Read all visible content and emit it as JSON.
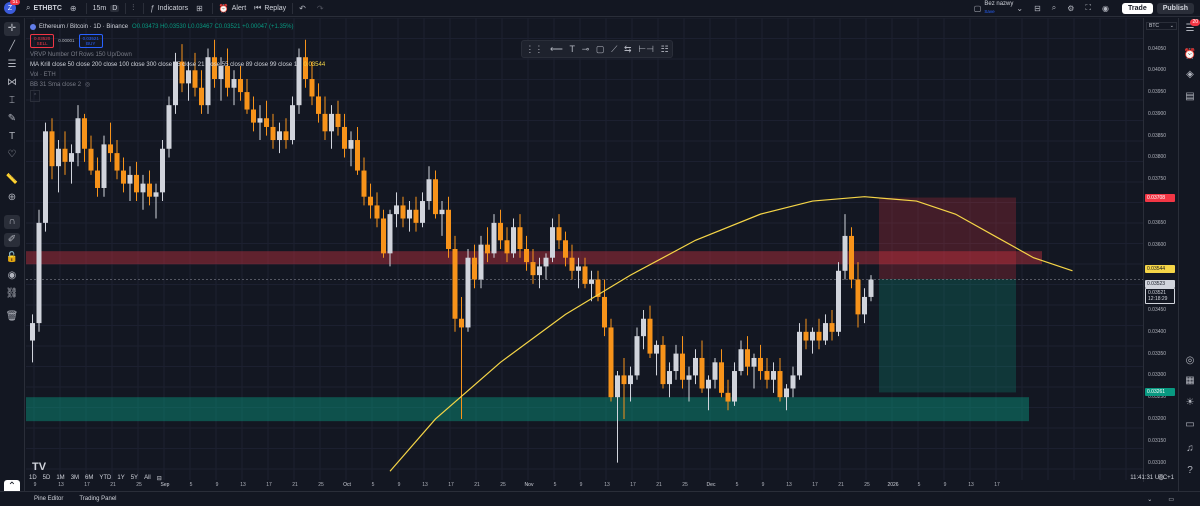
{
  "header": {
    "avatar_letter": "Z",
    "avatar_badge": "51",
    "symbol": "ETHBTC",
    "interval": "15m",
    "interval_badge": "D",
    "indicators_label": "Indicators",
    "alert_label": "Alert",
    "replay_label": "Replay",
    "layout_name": "Bez nazwy",
    "layout_sub": "Save",
    "trade_label": "Trade",
    "publish_label": "Publish"
  },
  "legend": {
    "title": "Ethereum / Bitcoin · 1D · Binance",
    "ohlc": "O0.03473 H0.03530 L0.03467 C0.03521 +0.00047 (+1.35%)",
    "sell_price": "0.03520",
    "sell_label": "SELL",
    "spread": "0.00001",
    "buy_price": "0.03521",
    "buy_label": "BUY",
    "ind1": "VRVP Number Of Rows 150 Up/Down",
    "ind2": "MA Krill close 50 close 200 close 100 close 300 close 15 close 21 close 55 close 89 close 99 close 10",
    "ind2_value": "0.03544",
    "ind3": "Vol · ETH",
    "ind4": "BB 31 Sma close 2"
  },
  "price_scale": {
    "currency": "BTC",
    "labels": [
      "0.04050",
      "0.04000",
      "0.03950",
      "0.03900",
      "0.03850",
      "0.03800",
      "0.03750",
      "0.03650",
      "0.03600",
      "0.03450",
      "0.03400",
      "0.03350",
      "0.03300",
      "0.03250",
      "0.03200",
      "0.03150",
      "0.03100"
    ],
    "tag_stop": "0.03708",
    "tag_ma": "0.03544",
    "tag_prev": "0.03523",
    "tag_last": "0.03521",
    "tag_countdown": "12:18:29",
    "tag_target": "0.03261"
  },
  "time_scale": {
    "labels": [
      "9",
      "13",
      "17",
      "21",
      "25",
      "Sep",
      "5",
      "9",
      "13",
      "17",
      "21",
      "25",
      "Oct",
      "5",
      "9",
      "13",
      "17",
      "21",
      "25",
      "Nov",
      "5",
      "9",
      "13",
      "17",
      "21",
      "25",
      "Dec",
      "5",
      "9",
      "13",
      "17",
      "21",
      "25",
      "2026",
      "5",
      "9",
      "13",
      "17"
    ]
  },
  "bottom": {
    "ranges": [
      "1D",
      "5D",
      "1M",
      "3M",
      "6M",
      "YTD",
      "1Y",
      "5Y",
      "All"
    ],
    "clock": "11:41:31 UTC+1"
  },
  "footer": {
    "pine_editor": "Pine Editor",
    "trading_panel": "Trading Panel"
  },
  "colors": {
    "background": "#131722",
    "up": "#d1d4dc",
    "down": "#f7931a",
    "ma": "#f5d547",
    "resistance_zone": "#f23645",
    "support_zone": "#089981"
  },
  "chart_data": {
    "type": "candlestick",
    "symbol": "ETHBTC",
    "timeframe": "1D",
    "ylim": [
      0.0306,
      0.0412
    ],
    "resistance_zone": [
      0.03555,
      0.03585
    ],
    "support_zone": [
      0.03195,
      0.0325
    ],
    "position": {
      "entry": 0.03521,
      "stop": 0.03708,
      "target": 0.03261
    },
    "candles": [
      [
        0.0338,
        0.0344,
        0.0333,
        0.0342
      ],
      [
        0.0342,
        0.0368,
        0.034,
        0.0365
      ],
      [
        0.0365,
        0.0388,
        0.0363,
        0.0386
      ],
      [
        0.0386,
        0.0389,
        0.0375,
        0.0378
      ],
      [
        0.0378,
        0.0384,
        0.0372,
        0.0382
      ],
      [
        0.0382,
        0.0386,
        0.0376,
        0.0379
      ],
      [
        0.0379,
        0.0383,
        0.0374,
        0.0381
      ],
      [
        0.0381,
        0.0392,
        0.0378,
        0.0389
      ],
      [
        0.0389,
        0.039,
        0.0379,
        0.0382
      ],
      [
        0.0382,
        0.0385,
        0.0376,
        0.0377
      ],
      [
        0.0377,
        0.038,
        0.0371,
        0.0373
      ],
      [
        0.0373,
        0.0385,
        0.0371,
        0.0383
      ],
      [
        0.0383,
        0.0388,
        0.0379,
        0.0381
      ],
      [
        0.0381,
        0.0384,
        0.0375,
        0.0377
      ],
      [
        0.0377,
        0.038,
        0.0372,
        0.0374
      ],
      [
        0.0374,
        0.0378,
        0.037,
        0.0376
      ],
      [
        0.0376,
        0.0379,
        0.037,
        0.0372
      ],
      [
        0.0372,
        0.0376,
        0.0368,
        0.0374
      ],
      [
        0.0374,
        0.0377,
        0.0369,
        0.0371
      ],
      [
        0.0371,
        0.0374,
        0.0366,
        0.0372
      ],
      [
        0.0372,
        0.0384,
        0.037,
        0.0382
      ],
      [
        0.0382,
        0.0394,
        0.038,
        0.0392
      ],
      [
        0.0392,
        0.0404,
        0.039,
        0.0402
      ],
      [
        0.0402,
        0.0406,
        0.0395,
        0.0397
      ],
      [
        0.0397,
        0.0402,
        0.0393,
        0.04
      ],
      [
        0.04,
        0.0404,
        0.0394,
        0.0396
      ],
      [
        0.0396,
        0.04,
        0.039,
        0.0392
      ],
      [
        0.0392,
        0.0405,
        0.039,
        0.0403
      ],
      [
        0.0403,
        0.0407,
        0.0396,
        0.0398
      ],
      [
        0.0398,
        0.0403,
        0.0393,
        0.0401
      ],
      [
        0.0401,
        0.0405,
        0.0394,
        0.0396
      ],
      [
        0.0396,
        0.04,
        0.0392,
        0.0398
      ],
      [
        0.0398,
        0.0401,
        0.0393,
        0.0395
      ],
      [
        0.0395,
        0.0398,
        0.039,
        0.0391
      ],
      [
        0.0391,
        0.0394,
        0.0386,
        0.0388
      ],
      [
        0.0388,
        0.0392,
        0.0384,
        0.0389
      ],
      [
        0.0389,
        0.0393,
        0.0385,
        0.0387
      ],
      [
        0.0387,
        0.039,
        0.0382,
        0.0384
      ],
      [
        0.0384,
        0.0388,
        0.0381,
        0.0386
      ],
      [
        0.0386,
        0.0389,
        0.0382,
        0.0384
      ],
      [
        0.0384,
        0.0394,
        0.0383,
        0.0392
      ],
      [
        0.0392,
        0.0405,
        0.039,
        0.0403
      ],
      [
        0.0403,
        0.0407,
        0.0396,
        0.0398
      ],
      [
        0.0398,
        0.0402,
        0.0392,
        0.0394
      ],
      [
        0.0394,
        0.0397,
        0.0388,
        0.039
      ],
      [
        0.039,
        0.0394,
        0.0384,
        0.0386
      ],
      [
        0.0386,
        0.0392,
        0.0382,
        0.039
      ],
      [
        0.039,
        0.0393,
        0.0385,
        0.0387
      ],
      [
        0.0387,
        0.039,
        0.038,
        0.0382
      ],
      [
        0.0382,
        0.0386,
        0.0378,
        0.0384
      ],
      [
        0.0384,
        0.0387,
        0.0376,
        0.0377
      ],
      [
        0.0377,
        0.038,
        0.0369,
        0.0371
      ],
      [
        0.0371,
        0.0374,
        0.0366,
        0.0369
      ],
      [
        0.0369,
        0.0372,
        0.0364,
        0.0366
      ],
      [
        0.0366,
        0.0368,
        0.0357,
        0.0358
      ],
      [
        0.0358,
        0.0368,
        0.0355,
        0.0367
      ],
      [
        0.0367,
        0.0372,
        0.0364,
        0.0369
      ],
      [
        0.0369,
        0.0371,
        0.0364,
        0.0366
      ],
      [
        0.0366,
        0.037,
        0.0363,
        0.0368
      ],
      [
        0.0368,
        0.0371,
        0.0363,
        0.0365
      ],
      [
        0.0365,
        0.0372,
        0.0364,
        0.037
      ],
      [
        0.037,
        0.0378,
        0.0368,
        0.0375
      ],
      [
        0.0375,
        0.0377,
        0.0366,
        0.0367
      ],
      [
        0.0367,
        0.037,
        0.0362,
        0.0368
      ],
      [
        0.0368,
        0.0371,
        0.0357,
        0.0359
      ],
      [
        0.0359,
        0.0362,
        0.034,
        0.0343
      ],
      [
        0.0343,
        0.0348,
        0.032,
        0.0341
      ],
      [
        0.0341,
        0.0359,
        0.034,
        0.0357
      ],
      [
        0.0357,
        0.036,
        0.035,
        0.0352
      ],
      [
        0.0352,
        0.0362,
        0.035,
        0.036
      ],
      [
        0.036,
        0.0364,
        0.0356,
        0.0358
      ],
      [
        0.0358,
        0.0367,
        0.0357,
        0.0365
      ],
      [
        0.0365,
        0.0368,
        0.0359,
        0.0361
      ],
      [
        0.0361,
        0.0364,
        0.0356,
        0.0358
      ],
      [
        0.0358,
        0.0366,
        0.0357,
        0.0364
      ],
      [
        0.0364,
        0.0367,
        0.0357,
        0.0359
      ],
      [
        0.0359,
        0.0362,
        0.0354,
        0.0356
      ],
      [
        0.0356,
        0.0359,
        0.0351,
        0.0353
      ],
      [
        0.0353,
        0.0357,
        0.035,
        0.0355
      ],
      [
        0.0355,
        0.0358,
        0.0352,
        0.0357
      ],
      [
        0.0357,
        0.0366,
        0.0356,
        0.0364
      ],
      [
        0.0364,
        0.0367,
        0.0359,
        0.0361
      ],
      [
        0.0361,
        0.0363,
        0.0355,
        0.0357
      ],
      [
        0.0357,
        0.036,
        0.0352,
        0.0354
      ],
      [
        0.0354,
        0.0357,
        0.035,
        0.0355
      ],
      [
        0.0355,
        0.0357,
        0.035,
        0.0351
      ],
      [
        0.0351,
        0.0354,
        0.0347,
        0.0352
      ],
      [
        0.0352,
        0.0354,
        0.0347,
        0.0348
      ],
      [
        0.0348,
        0.0352,
        0.0339,
        0.0341
      ],
      [
        0.0341,
        0.0343,
        0.0324,
        0.0325
      ],
      [
        0.0325,
        0.0331,
        0.031,
        0.033
      ],
      [
        0.033,
        0.0334,
        0.032,
        0.0328
      ],
      [
        0.0328,
        0.0332,
        0.0324,
        0.033
      ],
      [
        0.033,
        0.0341,
        0.0329,
        0.0339
      ],
      [
        0.0339,
        0.0345,
        0.0336,
        0.0343
      ],
      [
        0.0343,
        0.0346,
        0.0334,
        0.0335
      ],
      [
        0.0335,
        0.0338,
        0.033,
        0.0337
      ],
      [
        0.0337,
        0.0339,
        0.0327,
        0.0328
      ],
      [
        0.0328,
        0.0333,
        0.0325,
        0.0331
      ],
      [
        0.0331,
        0.0337,
        0.0329,
        0.0335
      ],
      [
        0.0335,
        0.0339,
        0.0327,
        0.0329
      ],
      [
        0.0329,
        0.0332,
        0.0324,
        0.033
      ],
      [
        0.033,
        0.0336,
        0.0328,
        0.0334
      ],
      [
        0.0334,
        0.0338,
        0.0326,
        0.0327
      ],
      [
        0.0327,
        0.033,
        0.0322,
        0.0329
      ],
      [
        0.0329,
        0.0334,
        0.0327,
        0.0333
      ],
      [
        0.0333,
        0.0336,
        0.0325,
        0.0326
      ],
      [
        0.0326,
        0.0329,
        0.0322,
        0.0324
      ],
      [
        0.0324,
        0.0333,
        0.0323,
        0.0331
      ],
      [
        0.0331,
        0.0338,
        0.033,
        0.0336
      ],
      [
        0.0336,
        0.0339,
        0.033,
        0.0332
      ],
      [
        0.0332,
        0.0335,
        0.0327,
        0.0334
      ],
      [
        0.0334,
        0.0337,
        0.0329,
        0.0331
      ],
      [
        0.0331,
        0.0334,
        0.0327,
        0.0329
      ],
      [
        0.0329,
        0.0333,
        0.0326,
        0.0331
      ],
      [
        0.0331,
        0.0334,
        0.0324,
        0.0325
      ],
      [
        0.0325,
        0.0328,
        0.0322,
        0.0327
      ],
      [
        0.0327,
        0.0332,
        0.0325,
        0.033
      ],
      [
        0.033,
        0.0342,
        0.0329,
        0.034
      ],
      [
        0.034,
        0.0343,
        0.0336,
        0.0338
      ],
      [
        0.0338,
        0.0341,
        0.0335,
        0.034
      ],
      [
        0.034,
        0.0343,
        0.0336,
        0.0338
      ],
      [
        0.0338,
        0.0344,
        0.0337,
        0.0342
      ],
      [
        0.0342,
        0.0345,
        0.0338,
        0.034
      ],
      [
        0.034,
        0.0356,
        0.0339,
        0.0354
      ],
      [
        0.0354,
        0.0367,
        0.0352,
        0.0362
      ],
      [
        0.0362,
        0.0364,
        0.035,
        0.0352
      ],
      [
        0.0352,
        0.0356,
        0.0341,
        0.0344
      ],
      [
        0.0344,
        0.035,
        0.0342,
        0.0348
      ],
      [
        0.0348,
        0.0353,
        0.0347,
        0.0352
      ]
    ],
    "ma_line": [
      [
        55,
        0.0308
      ],
      [
        62,
        0.032
      ],
      [
        72,
        0.0333
      ],
      [
        82,
        0.0344
      ],
      [
        92,
        0.0353
      ],
      [
        102,
        0.0361
      ],
      [
        112,
        0.0367
      ],
      [
        120,
        0.037
      ],
      [
        128,
        0.0371
      ],
      [
        136,
        0.037
      ],
      [
        142,
        0.0367
      ],
      [
        148,
        0.0362
      ],
      [
        154,
        0.0357
      ],
      [
        160,
        0.0354
      ]
    ]
  }
}
